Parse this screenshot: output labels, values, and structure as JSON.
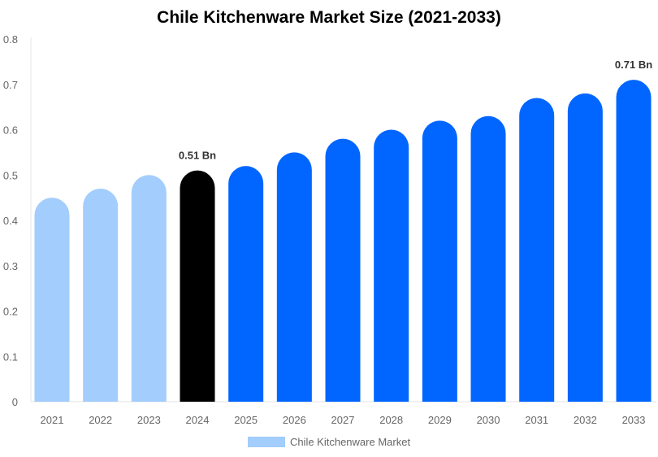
{
  "chart_data": {
    "type": "bar",
    "title": "Chile Kitchenware Market Size (2021-2033)",
    "categories": [
      "2021",
      "2022",
      "2023",
      "2024",
      "2025",
      "2026",
      "2027",
      "2028",
      "2029",
      "2030",
      "2031",
      "2032",
      "2033"
    ],
    "series": [
      {
        "name": "Chile Kitchenware Market",
        "values": [
          0.45,
          0.47,
          0.5,
          0.51,
          0.52,
          0.55,
          0.58,
          0.6,
          0.62,
          0.63,
          0.67,
          0.68,
          0.71
        ]
      }
    ],
    "ylim": [
      0,
      0.8
    ],
    "yticks": [
      "0",
      "0.1",
      "0.2",
      "0.3",
      "0.4",
      "0.5",
      "0.6",
      "0.7",
      "0.8"
    ],
    "data_labels": {
      "3": "0.51 Bn",
      "12": "0.71 Bn"
    },
    "colors": {
      "historical": "#a3cdfd",
      "current": "#000000",
      "forecast": "#0066ff"
    },
    "legend": "bottom",
    "grid": false
  }
}
